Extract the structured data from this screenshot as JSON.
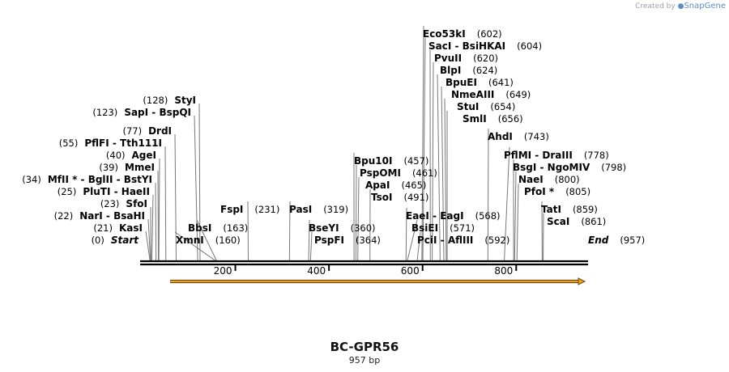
{
  "watermark": {
    "prefix": "Created by",
    "brand": "SnapGene"
  },
  "map": {
    "title": "BC-GPR56",
    "length_label": "957 bp",
    "length_bp": 957,
    "ticks": [
      200,
      400,
      600,
      800
    ],
    "feature_arrow": {
      "start": 64,
      "end": 957,
      "color": "#f0a020"
    }
  },
  "sites": [
    {
      "name": "Start",
      "pos": 0,
      "italic": true,
      "terminal": true
    },
    {
      "name": "KasI",
      "pos": 21
    },
    {
      "name": "NarI - BsaHI",
      "pos": 22
    },
    {
      "name": "SfoI",
      "pos": 23
    },
    {
      "name": "PluTI - HaeII",
      "pos": 25
    },
    {
      "name": "MfII * - BglII - BstYI",
      "pos": 34
    },
    {
      "name": "MmeI",
      "pos": 39
    },
    {
      "name": "AgeI",
      "pos": 40
    },
    {
      "name": "PflFI - Tth111I",
      "pos": 55
    },
    {
      "name": "DrdI",
      "pos": 77
    },
    {
      "name": "SapI - BspQI",
      "pos": 123
    },
    {
      "name": "StyI",
      "pos": 128
    },
    {
      "name": "XmnI",
      "pos": 160
    },
    {
      "name": "BbsI",
      "pos": 163
    },
    {
      "name": "FspI",
      "pos": 231
    },
    {
      "name": "PasI",
      "pos": 319
    },
    {
      "name": "BseYI",
      "pos": 360
    },
    {
      "name": "PspFI",
      "pos": 364
    },
    {
      "name": "Bpu10I",
      "pos": 457
    },
    {
      "name": "PspOMI",
      "pos": 461
    },
    {
      "name": "ApaI",
      "pos": 465
    },
    {
      "name": "TsoI",
      "pos": 491
    },
    {
      "name": "EaeI - EagI",
      "pos": 568
    },
    {
      "name": "BsiEI",
      "pos": 571
    },
    {
      "name": "PciI - AflIII",
      "pos": 592
    },
    {
      "name": "Eco53kI",
      "pos": 602
    },
    {
      "name": "SacI - BsiHKAI",
      "pos": 604
    },
    {
      "name": "PvuII",
      "pos": 620
    },
    {
      "name": "BlpI",
      "pos": 624
    },
    {
      "name": "BpuEI",
      "pos": 641
    },
    {
      "name": "NmeAIII",
      "pos": 649
    },
    {
      "name": "StuI",
      "pos": 654
    },
    {
      "name": "SmlI",
      "pos": 656
    },
    {
      "name": "AhdI",
      "pos": 743
    },
    {
      "name": "PflMI - DraIII",
      "pos": 778
    },
    {
      "name": "BsgI - NgoMIV",
      "pos": 798
    },
    {
      "name": "NaeI",
      "pos": 800
    },
    {
      "name": "PfoI *",
      "pos": 805
    },
    {
      "name": "TatI",
      "pos": 859
    },
    {
      "name": "ScaI",
      "pos": 861
    },
    {
      "name": "End",
      "pos": 957,
      "italic": true,
      "terminal": true
    }
  ]
}
